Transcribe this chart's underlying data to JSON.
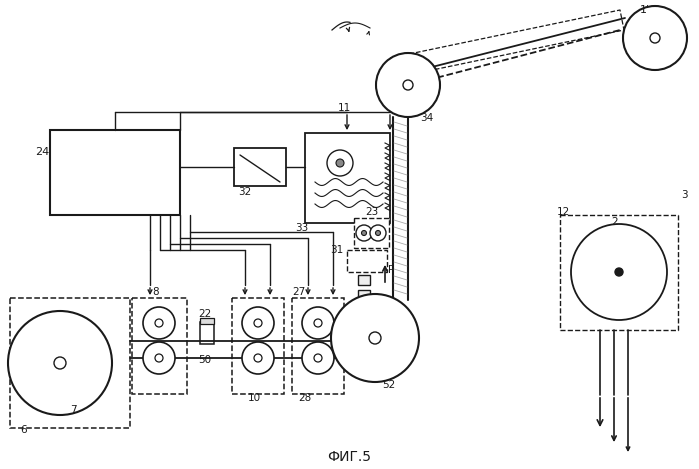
{
  "title": "ФИГ.5",
  "bg_color": "#ffffff",
  "line_color": "#1a1a1a",
  "gray_color": "#777777",
  "fig_width": 6.99,
  "fig_height": 4.69,
  "dpi": 100
}
